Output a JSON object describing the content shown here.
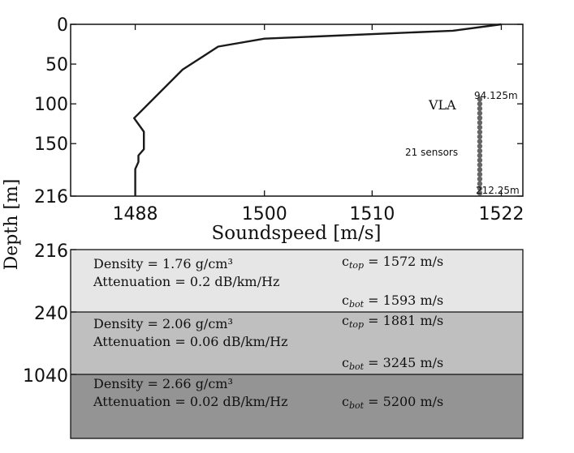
{
  "chart_data": [
    {
      "type": "line",
      "title": "",
      "xlabel": "Soundspeed [m/s]",
      "ylabel": "Depth [m]",
      "xlim": [
        1482,
        1524
      ],
      "ylim": [
        216,
        0
      ],
      "xticks": [
        "1488",
        "1500",
        "1510",
        "1522"
      ],
      "yticks": [
        "0",
        "50",
        "100",
        "150",
        "216"
      ],
      "series": [
        {
          "points": [
            {
              "x": 1522.0,
              "y": 0
            },
            {
              "x": 1517.5,
              "y": 8
            },
            {
              "x": 1500.0,
              "y": 18
            },
            {
              "x": 1495.7,
              "y": 28
            },
            {
              "x": 1492.4,
              "y": 57
            },
            {
              "x": 1487.9,
              "y": 118
            },
            {
              "x": 1488.8,
              "y": 135
            },
            {
              "x": 1488.8,
              "y": 157
            },
            {
              "x": 1488.3,
              "y": 165
            },
            {
              "x": 1488.3,
              "y": 173
            },
            {
              "x": 1488.0,
              "y": 182
            },
            {
              "x": 1488.0,
              "y": 216
            }
          ]
        }
      ],
      "vla": {
        "label": "VLA",
        "sensors_label": "21 sensors",
        "top_label": "94.125m",
        "bottom_label": "212.25m",
        "x": 1520,
        "top_depth": 94.125,
        "bottom_depth": 212.25,
        "sensor_count": 21,
        "color": "#666666"
      },
      "line_color": "#1a1a1a"
    },
    {
      "type": "table",
      "depth_ticks": [
        "216",
        "240",
        "1040"
      ],
      "layers": [
        {
          "density": "Density = 1.76 g/cm³",
          "attenuation": "Attenuation = 0.2 dB/km/Hz",
          "c_top_symbol": "c",
          "c_top_sub": "top",
          "c_top_value": " = 1572 m/s",
          "c_bot_symbol": "c",
          "c_bot_sub": "bot",
          "c_bot_value": " = 1593 m/s",
          "color": "#e6e6e6"
        },
        {
          "density": "Density = 2.06 g/cm³",
          "attenuation": "Attenuation = 0.06 dB/km/Hz",
          "c_top_symbol": "c",
          "c_top_sub": "top",
          "c_top_value": " = 1881 m/s",
          "c_bot_symbol": "c",
          "c_bot_sub": "bot",
          "c_bot_value": " = 3245 m/s",
          "color": "#bfbfbf"
        },
        {
          "density": "Density = 2.66 g/cm³",
          "attenuation": "Attenuation = 0.02 dB/km/Hz",
          "c_bot_symbol": "c",
          "c_bot_sub": "bot",
          "c_bot_value": " = 5200 m/s",
          "color": "#949494"
        }
      ]
    }
  ]
}
